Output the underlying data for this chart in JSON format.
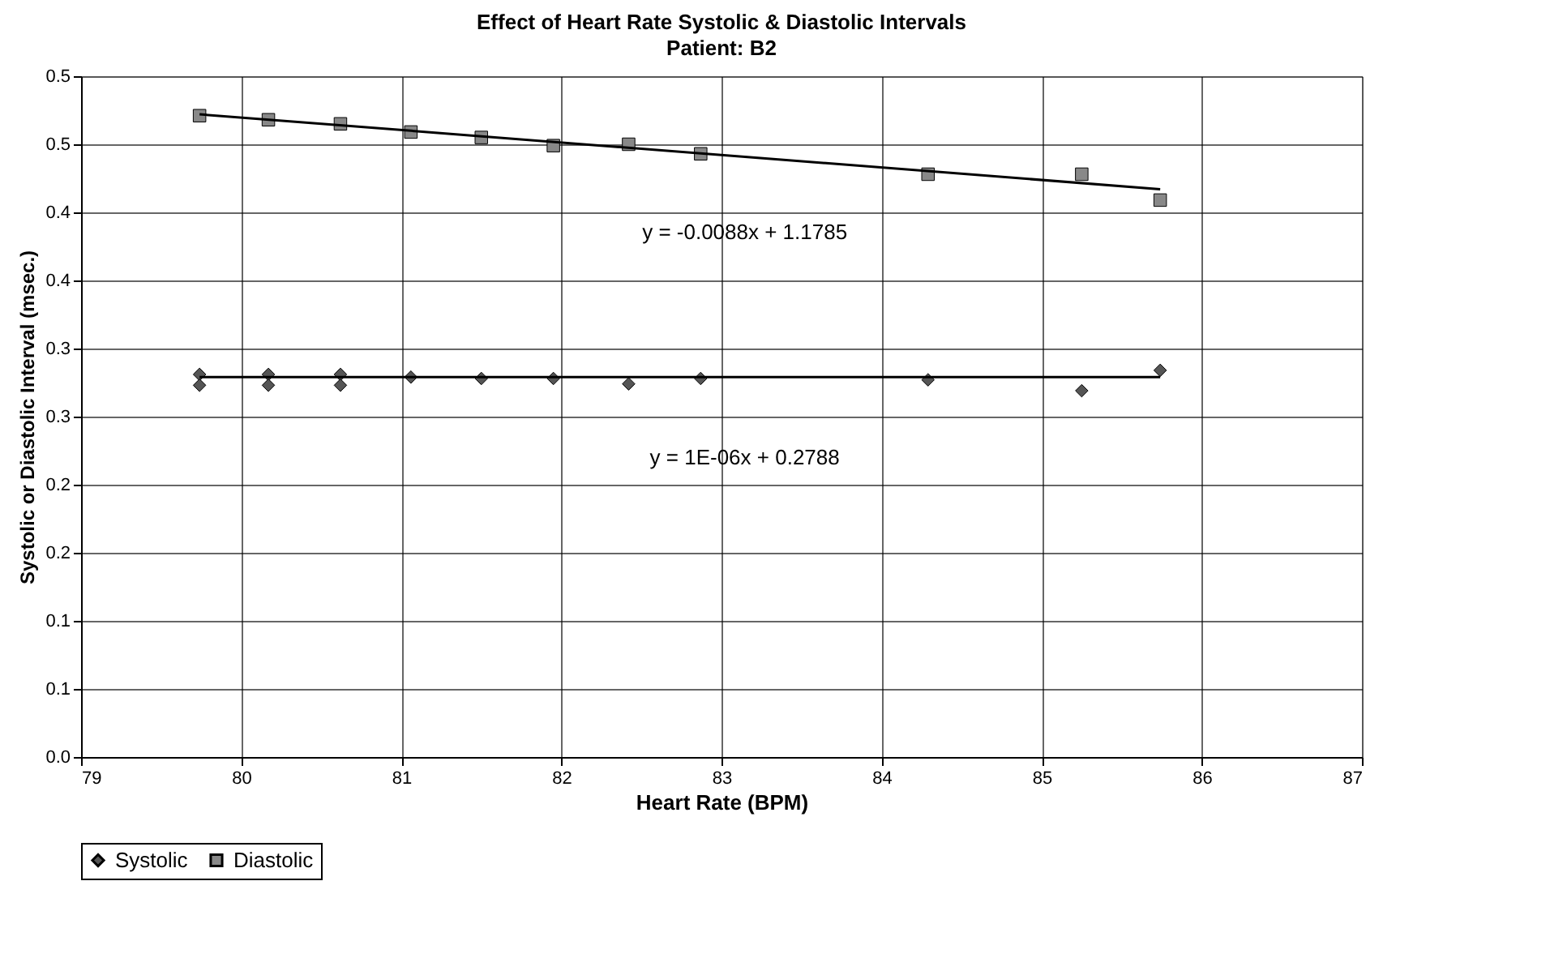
{
  "chart_data": {
    "type": "scatter",
    "title": "Effect of Heart Rate Systolic & Diastolic Intervals",
    "subtitle": "Patient: B2",
    "xlabel": "Heart Rate (BPM)",
    "ylabel": "Systolic or Diastolic Interval (msec.)",
    "xlim": [
      79,
      87
    ],
    "xticks": [
      79,
      80,
      81,
      82,
      83,
      84,
      85,
      86,
      87
    ],
    "ylim": [
      0,
      0.5
    ],
    "yticks": [
      {
        "value": 0,
        "label": "0.0"
      },
      {
        "value": 0.05,
        "label": "0.1"
      },
      {
        "value": 0.1,
        "label": "0.1"
      },
      {
        "value": 0.15,
        "label": "0.2"
      },
      {
        "value": 0.2,
        "label": "0.2"
      },
      {
        "value": 0.25,
        "label": "0.3"
      },
      {
        "value": 0.3,
        "label": "0.3"
      },
      {
        "value": 0.35,
        "label": "0.4"
      },
      {
        "value": 0.4,
        "label": "0.4"
      },
      {
        "value": 0.45,
        "label": "0.5"
      },
      {
        "value": 0.5,
        "label": "0.5"
      }
    ],
    "grid": true,
    "legend": "bottom",
    "series": [
      {
        "name": "Systolic",
        "color": "#555555",
        "marker": "diamond",
        "x": [
          79.74,
          79.74,
          80.17,
          80.17,
          80.62,
          80.62,
          81.06,
          81.5,
          81.95,
          82.42,
          82.87,
          84.29,
          85.25,
          85.74
        ],
        "values": [
          0.281,
          0.273,
          0.281,
          0.273,
          0.281,
          0.273,
          0.279,
          0.278,
          0.278,
          0.274,
          0.278,
          0.277,
          0.269,
          0.284
        ]
      },
      {
        "name": "Diastolic",
        "color": "#888888",
        "marker": "square",
        "x": [
          79.74,
          80.17,
          80.62,
          81.06,
          81.5,
          81.95,
          82.42,
          82.87,
          84.29,
          85.25,
          85.74
        ],
        "values": [
          0.471,
          0.468,
          0.465,
          0.459,
          0.455,
          0.449,
          0.45,
          0.443,
          0.428,
          0.428,
          0.409
        ]
      },
      {
        "type": "line",
        "color": "#000000",
        "x": [
          79.74,
          85.74
        ],
        "values": [
          0.472,
          0.417
        ]
      },
      {
        "type": "line",
        "color": "#000000",
        "x": [
          79.74,
          85.74
        ],
        "values": [
          0.279,
          0.279
        ]
      }
    ],
    "annotations": [
      "y = -0.0088x + 1.1785",
      "y = 1E-06x + 0.2788"
    ]
  }
}
